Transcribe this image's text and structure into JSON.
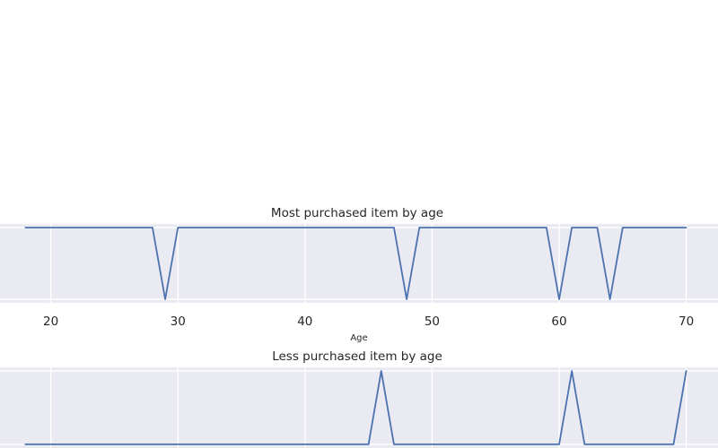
{
  "chart_data": [
    {
      "type": "line",
      "title": "Most purchased item by age",
      "xlabel": "Age",
      "ylabel": "",
      "xlim": [
        16,
        72.5
      ],
      "ylim": [
        -0.05,
        1.05
      ],
      "xticks": [
        20,
        30,
        40,
        50,
        60,
        70
      ],
      "grid": true,
      "series": [
        {
          "color": "#4c72b0",
          "x": [
            18,
            28,
            29,
            30,
            47,
            48,
            49,
            59,
            60,
            61,
            63,
            64,
            65,
            70
          ],
          "values": [
            1,
            1,
            0,
            1,
            1,
            0,
            1,
            1,
            0,
            1,
            1,
            0,
            1,
            1
          ]
        }
      ]
    },
    {
      "type": "line",
      "title": "Less purchased item by age",
      "xlabel": "",
      "ylabel": "",
      "xlim": [
        16,
        72.5
      ],
      "ylim": [
        -0.05,
        1.05
      ],
      "xticks": [
        20,
        30,
        40,
        50,
        60,
        70
      ],
      "grid": true,
      "series": [
        {
          "color": "#4c72b0",
          "x": [
            18,
            45,
            46,
            47,
            60,
            61,
            62,
            69,
            70
          ],
          "values": [
            0,
            0,
            1,
            0,
            0,
            1,
            0,
            0,
            1
          ]
        }
      ]
    }
  ],
  "colors": {
    "plot_background": "#eaeaf2",
    "grid": "#ffffff",
    "line": "#4c72b0"
  }
}
